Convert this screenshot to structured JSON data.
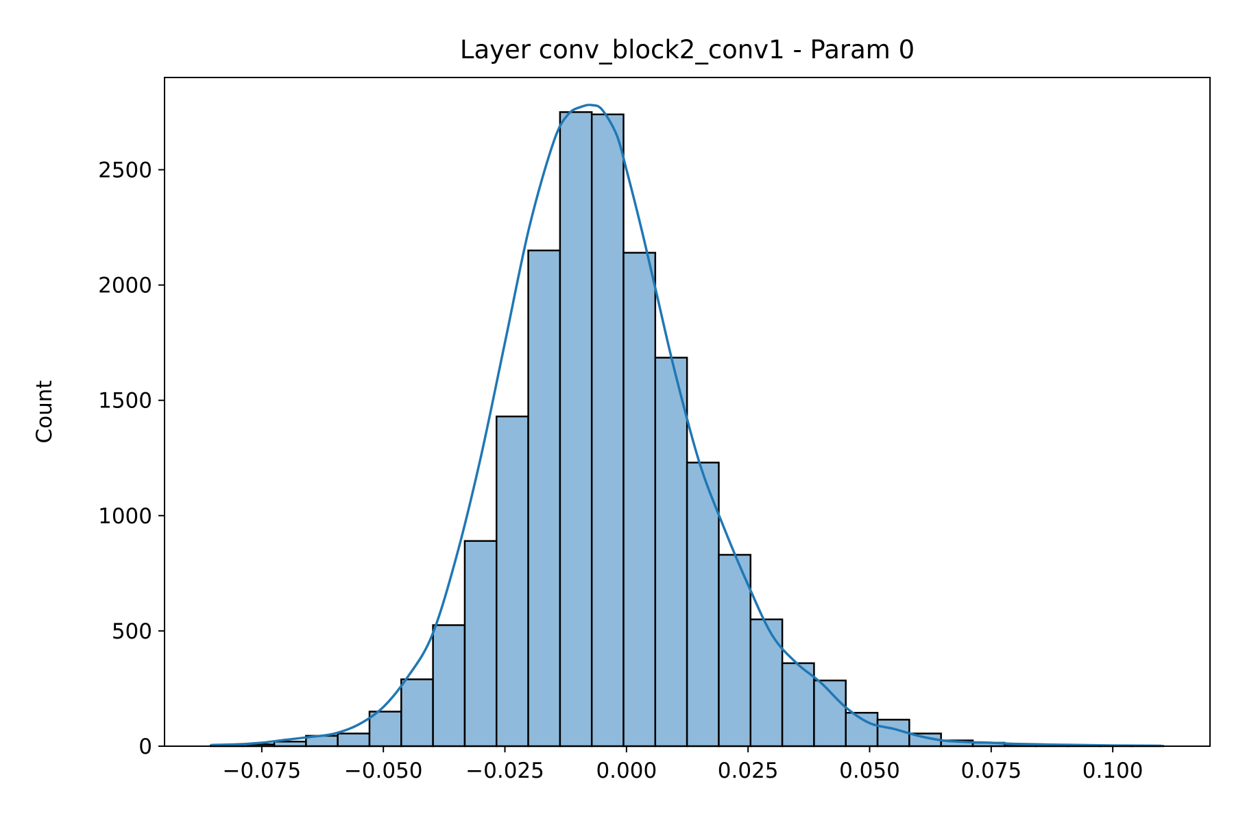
{
  "chart_data": {
    "type": "bar",
    "title": "Layer conv_block2_conv1 - Param 0",
    "xlabel": "",
    "ylabel": "Count",
    "xlim": [
      -0.095,
      0.12
    ],
    "ylim": [
      0,
      2900
    ],
    "xticks": [
      -0.075,
      -0.05,
      -0.025,
      0.0,
      0.025,
      0.05,
      0.075,
      0.1
    ],
    "xtick_labels": [
      "−0.075",
      "−0.050",
      "−0.025",
      "0.000",
      "0.025",
      "0.050",
      "0.075",
      "0.100"
    ],
    "yticks": [
      0,
      500,
      1000,
      1500,
      2000,
      2500
    ],
    "ytick_labels": [
      "0",
      "500",
      "1000",
      "1500",
      "2000",
      "2500"
    ],
    "grid": false,
    "bins": {
      "start": -0.0855,
      "width": 0.00653,
      "counts": [
        3,
        8,
        20,
        45,
        55,
        150,
        290,
        525,
        890,
        1430,
        2150,
        2750,
        2740,
        2140,
        1685,
        1230,
        830,
        550,
        360,
        285,
        145,
        115,
        55,
        25,
        15,
        8,
        5,
        3,
        2,
        1
      ]
    },
    "kde": {
      "x": [
        -0.0855,
        -0.08,
        -0.075,
        -0.07,
        -0.065,
        -0.06,
        -0.055,
        -0.05,
        -0.045,
        -0.04,
        -0.035,
        -0.03,
        -0.025,
        -0.02,
        -0.015,
        -0.012,
        -0.009,
        -0.007,
        -0.005,
        -0.002,
        0.0,
        0.003,
        0.006,
        0.01,
        0.015,
        0.02,
        0.025,
        0.03,
        0.035,
        0.04,
        0.045,
        0.05,
        0.055,
        0.06,
        0.065,
        0.07,
        0.075,
        0.08,
        0.09,
        0.1,
        0.11
      ],
      "y": [
        5,
        8,
        15,
        28,
        40,
        55,
        95,
        170,
        300,
        480,
        820,
        1250,
        1750,
        2250,
        2620,
        2740,
        2775,
        2780,
        2760,
        2650,
        2500,
        2250,
        1980,
        1620,
        1230,
        950,
        700,
        480,
        360,
        275,
        170,
        100,
        75,
        45,
        25,
        18,
        15,
        10,
        6,
        3,
        2
      ]
    },
    "colors": {
      "bar_fill": "#8fbadb",
      "bar_edge": "#000000",
      "kde_line": "#1f77b4"
    }
  }
}
